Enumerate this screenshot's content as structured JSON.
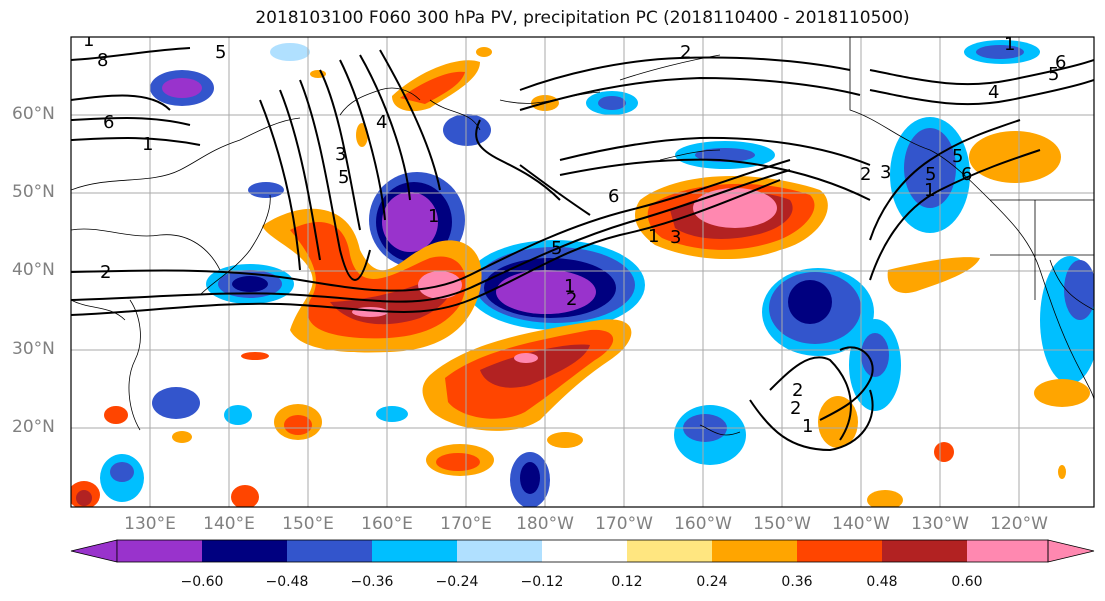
{
  "title": "2018103100 F060 300 hPa PV, precipitation PC (2018110400 - 2018110500)",
  "axes": {
    "lat_labels": [
      "60°N",
      "50°N",
      "40°N",
      "30°N",
      "20°N"
    ],
    "lon_labels": [
      "130°E",
      "140°E",
      "150°E",
      "160°E",
      "170°E",
      "180°W",
      "170°W",
      "160°W",
      "150°W",
      "140°W",
      "130°W",
      "120°W"
    ],
    "grid": true
  },
  "colorbar": {
    "tick_labels": [
      "−0.60",
      "−0.48",
      "−0.36",
      "−0.24",
      "−0.12",
      "0.12",
      "0.24",
      "0.36",
      "0.48",
      "0.60"
    ],
    "colors": [
      "#9933cc",
      "#000080",
      "#3355cc",
      "#00bfff",
      "#b0e0ff",
      "#ffffff",
      "#ffe680",
      "#ffa500",
      "#ff4500",
      "#b22222",
      "#ff88b0"
    ]
  },
  "contour_labels": [
    "8",
    "6",
    "5",
    "2",
    "5",
    "4",
    "6",
    "4",
    "1",
    "1",
    "1",
    "2",
    "3",
    "5",
    "1",
    "5",
    "6",
    "1",
    "2",
    "3",
    "1",
    "5",
    "6",
    "5",
    "2",
    "3",
    "2",
    "1",
    "2",
    "1"
  ]
}
